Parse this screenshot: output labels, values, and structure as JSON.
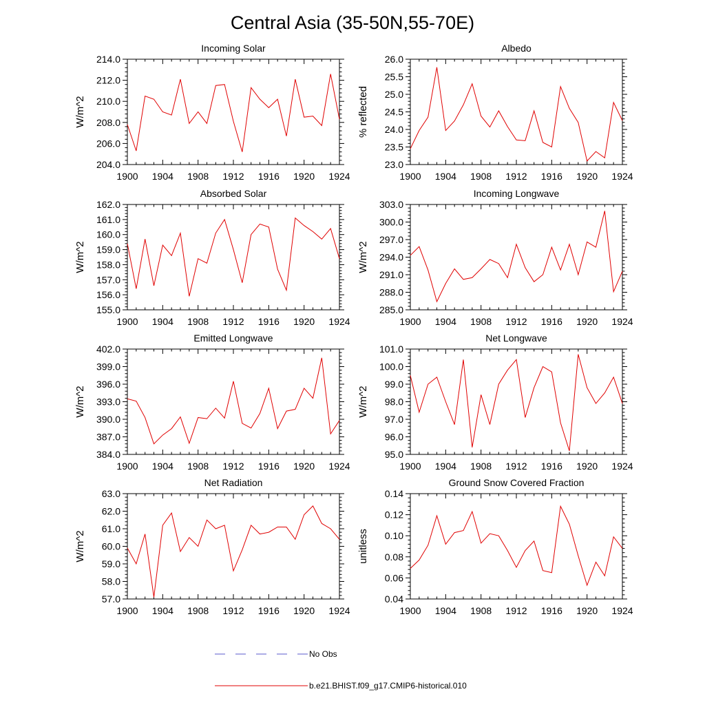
{
  "figure": {
    "title": "Central Asia (35-50N,55-70E)",
    "line_color": "#e00000",
    "obs_color": "#5a5acc"
  },
  "legend": {
    "obs_label": "No Obs",
    "model_label": "b.e21.BHIST.f09_g17.CMIP6-historical.010"
  },
  "chart_data": [
    {
      "type": "line",
      "title": "Incoming Solar",
      "ylabel": "W/m^2",
      "xlim": [
        1900,
        1924
      ],
      "ylim": [
        204.0,
        214.0
      ],
      "yticks": [
        "204.0",
        "206.0",
        "208.0",
        "210.0",
        "212.0",
        "214.0"
      ],
      "xticks": [
        "1900",
        "1904",
        "1908",
        "1912",
        "1916",
        "1920",
        "1924"
      ],
      "series": [
        {
          "x": [
            1900,
            1901,
            1902,
            1903,
            1904,
            1905,
            1906,
            1907,
            1908,
            1909,
            1910,
            1911,
            1912,
            1913,
            1914,
            1915,
            1916,
            1917,
            1918,
            1919,
            1920,
            1921,
            1922,
            1923,
            1924
          ],
          "values": [
            207.8,
            205.3,
            210.5,
            210.2,
            209.0,
            208.7,
            212.1,
            207.9,
            209.0,
            207.9,
            211.5,
            211.6,
            208.1,
            205.2,
            211.3,
            210.2,
            209.4,
            210.2,
            206.7,
            212.1,
            208.5,
            208.6,
            207.7,
            212.6,
            208.3
          ]
        }
      ]
    },
    {
      "type": "line",
      "title": "Albedo",
      "ylabel": "% reflected",
      "xlim": [
        1900,
        1924
      ],
      "ylim": [
        23.0,
        26.0
      ],
      "yticks": [
        "23.0",
        "23.5",
        "24.0",
        "24.5",
        "25.0",
        "25.5",
        "26.0"
      ],
      "xticks": [
        "1900",
        "1904",
        "1908",
        "1912",
        "1916",
        "1920",
        "1924"
      ],
      "series": [
        {
          "x": [
            1900,
            1901,
            1902,
            1903,
            1904,
            1905,
            1906,
            1907,
            1908,
            1909,
            1910,
            1911,
            1912,
            1913,
            1914,
            1915,
            1916,
            1917,
            1918,
            1919,
            1920,
            1921,
            1922,
            1923,
            1924
          ],
          "values": [
            23.45,
            23.97,
            24.35,
            25.77,
            23.97,
            24.24,
            24.7,
            25.3,
            24.38,
            24.07,
            24.53,
            24.08,
            23.7,
            23.68,
            24.53,
            23.63,
            23.5,
            25.22,
            24.6,
            24.2,
            23.1,
            23.37,
            23.19,
            24.77,
            24.25
          ]
        }
      ]
    },
    {
      "type": "line",
      "title": "Absorbed Solar",
      "ylabel": "W/m^2",
      "xlim": [
        1900,
        1924
      ],
      "ylim": [
        155.0,
        162.0
      ],
      "yticks": [
        "155.0",
        "156.0",
        "157.0",
        "158.0",
        "159.0",
        "160.0",
        "161.0",
        "162.0"
      ],
      "xticks": [
        "1900",
        "1904",
        "1908",
        "1912",
        "1916",
        "1920",
        "1924"
      ],
      "series": [
        {
          "x": [
            1900,
            1901,
            1902,
            1903,
            1904,
            1905,
            1906,
            1907,
            1908,
            1909,
            1910,
            1911,
            1912,
            1913,
            1914,
            1915,
            1916,
            1917,
            1918,
            1919,
            1920,
            1921,
            1922,
            1923,
            1924
          ],
          "values": [
            159.4,
            156.4,
            159.7,
            156.6,
            159.3,
            158.6,
            160.1,
            155.9,
            158.4,
            158.1,
            160.1,
            161.0,
            159.0,
            156.8,
            160.0,
            160.7,
            160.5,
            157.7,
            156.3,
            161.1,
            160.6,
            160.2,
            159.7,
            160.4,
            158.4
          ]
        }
      ]
    },
    {
      "type": "line",
      "title": "Incoming Longwave",
      "ylabel": "W/m^2",
      "xlim": [
        1900,
        1924
      ],
      "ylim": [
        285.0,
        303.0
      ],
      "yticks": [
        "285.0",
        "288.0",
        "291.0",
        "294.0",
        "297.0",
        "300.0",
        "303.0"
      ],
      "xticks": [
        "1900",
        "1904",
        "1908",
        "1912",
        "1916",
        "1920",
        "1924"
      ],
      "series": [
        {
          "x": [
            1900,
            1901,
            1902,
            1903,
            1904,
            1905,
            1906,
            1907,
            1908,
            1909,
            1910,
            1911,
            1912,
            1913,
            1914,
            1915,
            1916,
            1917,
            1918,
            1919,
            1920,
            1921,
            1922,
            1923,
            1924
          ],
          "values": [
            294.3,
            295.8,
            291.8,
            286.4,
            289.5,
            292.0,
            290.2,
            290.5,
            292.0,
            293.6,
            292.9,
            290.5,
            296.2,
            292.2,
            289.8,
            291.0,
            295.7,
            291.8,
            296.2,
            291.0,
            296.6,
            295.7,
            301.9,
            288.1,
            291.6
          ]
        }
      ]
    },
    {
      "type": "line",
      "title": "Emitted Longwave",
      "ylabel": "W/m^2",
      "xlim": [
        1900,
        1924
      ],
      "ylim": [
        384.0,
        402.0
      ],
      "yticks": [
        "384.0",
        "387.0",
        "390.0",
        "393.0",
        "396.0",
        "399.0",
        "402.0"
      ],
      "xticks": [
        "1900",
        "1904",
        "1908",
        "1912",
        "1916",
        "1920",
        "1924"
      ],
      "series": [
        {
          "x": [
            1900,
            1901,
            1902,
            1903,
            1904,
            1905,
            1906,
            1907,
            1908,
            1909,
            1910,
            1911,
            1912,
            1913,
            1914,
            1915,
            1916,
            1917,
            1918,
            1919,
            1920,
            1921,
            1922,
            1923,
            1924
          ],
          "values": [
            393.5,
            393.1,
            390.3,
            385.8,
            387.3,
            388.4,
            390.4,
            385.9,
            390.3,
            390.1,
            391.9,
            390.2,
            396.5,
            389.3,
            388.5,
            391.0,
            395.3,
            388.4,
            391.4,
            391.7,
            395.3,
            393.6,
            400.5,
            387.5,
            389.8
          ]
        }
      ]
    },
    {
      "type": "line",
      "title": "Net Longwave",
      "ylabel": "W/m^2",
      "xlim": [
        1900,
        1924
      ],
      "ylim": [
        95.0,
        101.0
      ],
      "yticks": [
        "95.0",
        "96.0",
        "97.0",
        "98.0",
        "99.0",
        "100.0",
        "101.0"
      ],
      "xticks": [
        "1900",
        "1904",
        "1908",
        "1912",
        "1916",
        "1920",
        "1924"
      ],
      "series": [
        {
          "x": [
            1900,
            1901,
            1902,
            1903,
            1904,
            1905,
            1906,
            1907,
            1908,
            1909,
            1910,
            1911,
            1912,
            1913,
            1914,
            1915,
            1916,
            1917,
            1918,
            1919,
            1920,
            1921,
            1922,
            1923,
            1924
          ],
          "values": [
            99.5,
            97.4,
            99.0,
            99.4,
            98.0,
            96.7,
            100.4,
            95.4,
            98.4,
            96.7,
            99.0,
            99.8,
            100.4,
            97.1,
            98.8,
            100.0,
            99.7,
            96.8,
            95.2,
            100.7,
            98.8,
            97.9,
            98.5,
            99.4,
            97.9
          ]
        }
      ]
    },
    {
      "type": "line",
      "title": "Net Radiation",
      "ylabel": "W/m^2",
      "xlim": [
        1900,
        1924
      ],
      "ylim": [
        57.0,
        63.0
      ],
      "yticks": [
        "57.0",
        "58.0",
        "59.0",
        "60.0",
        "61.0",
        "62.0",
        "63.0"
      ],
      "xticks": [
        "1900",
        "1904",
        "1908",
        "1912",
        "1916",
        "1920",
        "1924"
      ],
      "series": [
        {
          "x": [
            1900,
            1901,
            1902,
            1903,
            1904,
            1905,
            1906,
            1907,
            1908,
            1909,
            1910,
            1911,
            1912,
            1913,
            1914,
            1915,
            1916,
            1917,
            1918,
            1919,
            1920,
            1921,
            1922,
            1923,
            1924
          ],
          "values": [
            59.9,
            59.0,
            60.7,
            57.1,
            61.2,
            61.9,
            59.7,
            60.5,
            60.0,
            61.5,
            61.0,
            61.2,
            58.6,
            59.8,
            61.2,
            60.7,
            60.8,
            61.1,
            61.1,
            60.4,
            61.8,
            62.3,
            61.3,
            61.0,
            60.4
          ]
        }
      ]
    },
    {
      "type": "line",
      "title": "Ground Snow Covered Fraction",
      "ylabel": "unitless",
      "xlim": [
        1900,
        1924
      ],
      "ylim": [
        0.04,
        0.14
      ],
      "yticks": [
        "0.04",
        "0.06",
        "0.08",
        "0.10",
        "0.12",
        "0.14"
      ],
      "xticks": [
        "1900",
        "1904",
        "1908",
        "1912",
        "1916",
        "1920",
        "1924"
      ],
      "series": [
        {
          "x": [
            1900,
            1901,
            1902,
            1903,
            1904,
            1905,
            1906,
            1907,
            1908,
            1909,
            1910,
            1911,
            1912,
            1913,
            1914,
            1915,
            1916,
            1917,
            1918,
            1919,
            1920,
            1921,
            1922,
            1923,
            1924
          ],
          "values": [
            0.069,
            0.077,
            0.091,
            0.119,
            0.092,
            0.103,
            0.105,
            0.123,
            0.093,
            0.102,
            0.1,
            0.086,
            0.07,
            0.086,
            0.095,
            0.067,
            0.065,
            0.128,
            0.111,
            0.081,
            0.053,
            0.075,
            0.062,
            0.099,
            0.088
          ]
        }
      ]
    }
  ]
}
